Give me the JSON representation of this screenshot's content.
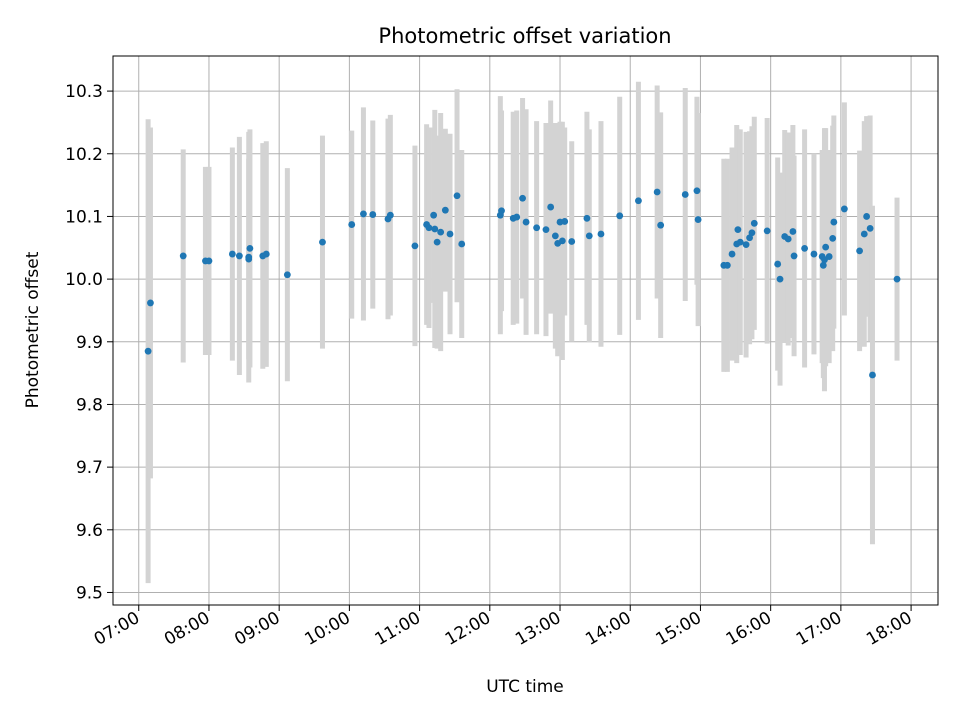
{
  "chart_data": {
    "type": "scatter",
    "title": "Photometric offset variation",
    "xlabel": "UTC time",
    "ylabel": "Photometric offset",
    "x_tick_labels": [
      "07:00",
      "08:00",
      "09:00",
      "10:00",
      "11:00",
      "12:00",
      "13:00",
      "14:00",
      "15:00",
      "16:00",
      "17:00",
      "18:00"
    ],
    "y_tick_labels": [
      "9.5",
      "9.6",
      "9.7",
      "9.8",
      "9.9",
      "10.0",
      "10.1",
      "10.2",
      "10.3"
    ],
    "xlim": [
      "06:38",
      "18:23"
    ],
    "ylim": [
      9.48,
      10.356
    ],
    "grid": true,
    "x_tick_rotation_deg": 30,
    "colors": {
      "point": "#1f77b4",
      "errorbar": "#d3d3d3",
      "grid": "#b0b0b0",
      "axes": "#000000"
    },
    "series": [
      {
        "x": [
          "07:08",
          "07:10",
          "07:38",
          "07:57",
          "08:00",
          "08:20",
          "08:26",
          "08:34",
          "08:34",
          "08:35",
          "08:46",
          "08:49",
          "09:07",
          "09:37",
          "10:02",
          "10:12",
          "10:20",
          "10:33",
          "10:35",
          "10:56",
          "11:06",
          "11:08",
          "11:12",
          "11:13",
          "11:15",
          "11:18",
          "11:22",
          "11:26",
          "11:32",
          "11:36",
          "12:09",
          "12:10",
          "12:20",
          "12:23",
          "12:28",
          "12:31",
          "12:40",
          "12:48",
          "12:52",
          "12:56",
          "12:58",
          "13:00",
          "13:02",
          "13:04",
          "13:10",
          "13:23",
          "13:25",
          "13:35",
          "13:51",
          "14:07",
          "14:23",
          "14:26",
          "14:47",
          "14:57",
          "14:58",
          "15:20",
          "15:23",
          "15:27",
          "15:31",
          "15:32",
          "15:34",
          "15:39",
          "15:42",
          "15:44",
          "15:46",
          "15:57",
          "16:06",
          "16:08",
          "16:12",
          "16:15",
          "16:19",
          "16:20",
          "16:29",
          "16:37",
          "16:44",
          "16:45",
          "16:46",
          "16:47",
          "16:50",
          "16:53",
          "16:54",
          "17:03",
          "17:16",
          "17:20",
          "17:22",
          "17:25",
          "17:27",
          "17:48"
        ],
        "y": [
          9.885,
          9.962,
          10.037,
          10.029,
          10.029,
          10.04,
          10.037,
          10.035,
          10.032,
          10.049,
          10.037,
          10.04,
          10.007,
          10.059,
          10.087,
          10.104,
          10.103,
          10.096,
          10.102,
          10.053,
          10.087,
          10.082,
          10.102,
          10.08,
          10.059,
          10.075,
          10.11,
          10.072,
          10.133,
          10.056,
          10.102,
          10.109,
          10.097,
          10.099,
          10.129,
          10.091,
          10.082,
          10.079,
          10.115,
          10.069,
          10.057,
          10.091,
          10.061,
          10.092,
          10.06,
          10.097,
          10.069,
          10.072,
          10.101,
          10.125,
          10.139,
          10.086,
          10.135,
          10.141,
          10.095,
          10.022,
          10.022,
          10.04,
          10.056,
          10.079,
          10.059,
          10.055,
          10.066,
          10.074,
          10.089,
          10.077,
          10.024,
          10.0,
          10.068,
          10.064,
          10.076,
          10.037,
          10.049,
          10.04,
          10.036,
          10.022,
          10.031,
          10.051,
          10.036,
          10.065,
          10.091,
          10.112,
          10.045,
          10.072,
          10.1,
          10.081,
          9.847,
          10.0
        ],
        "yerr": [
          0.37,
          0.28,
          0.17,
          0.15,
          0.15,
          0.17,
          0.19,
          0.2,
          0.16,
          0.19,
          0.18,
          0.18,
          0.17,
          0.17,
          0.15,
          0.17,
          0.15,
          0.16,
          0.16,
          0.16,
          0.16,
          0.16,
          0.14,
          0.19,
          0.17,
          0.19,
          0.13,
          0.16,
          0.17,
          0.15,
          0.19,
          0.16,
          0.17,
          0.17,
          0.16,
          0.18,
          0.17,
          0.17,
          0.17,
          0.18,
          0.18,
          0.16,
          0.19,
          0.15,
          0.16,
          0.17,
          0.17,
          0.18,
          0.19,
          0.19,
          0.17,
          0.18,
          0.17,
          0.15,
          0.17,
          0.17,
          0.17,
          0.17,
          0.19,
          0.16,
          0.18,
          0.18,
          0.17,
          0.17,
          0.17,
          0.18,
          0.17,
          0.17,
          0.17,
          0.17,
          0.17,
          0.16,
          0.19,
          0.16,
          0.17,
          0.18,
          0.21,
          0.19,
          0.17,
          0.18,
          0.17,
          0.17,
          0.16,
          0.18,
          0.16,
          0.18,
          0.27,
          0.13
        ]
      }
    ]
  }
}
